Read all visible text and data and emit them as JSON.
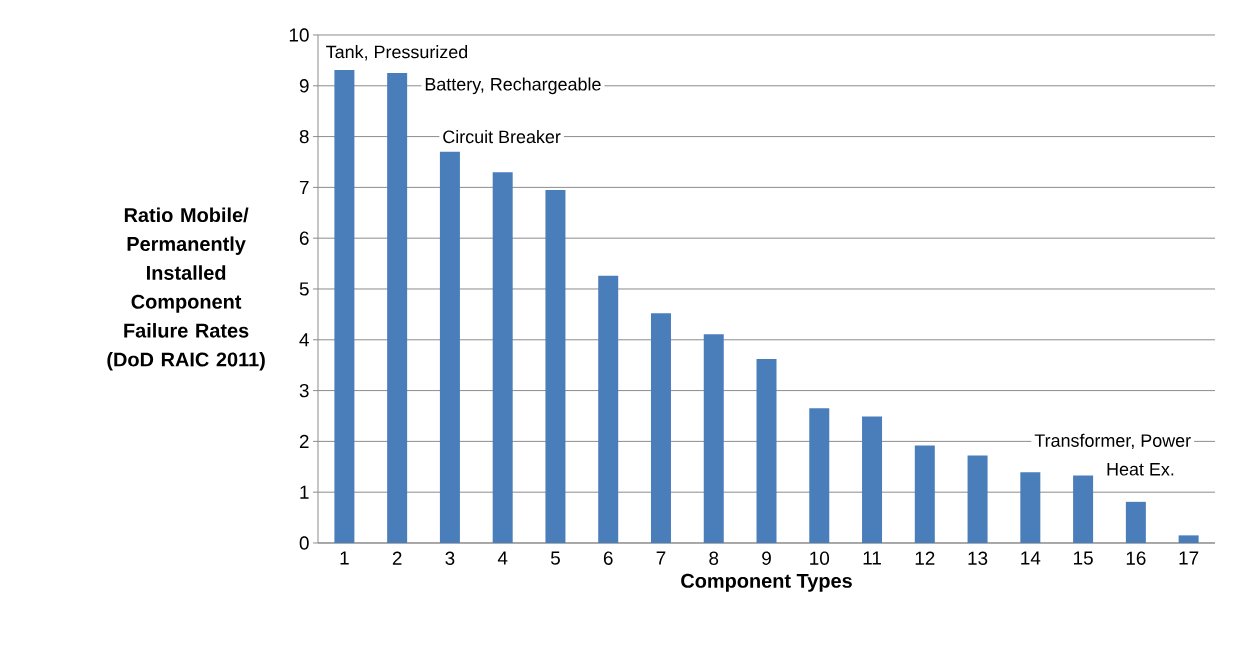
{
  "chart_data": {
    "type": "bar",
    "xlabel": "Component Types",
    "ylabel": "Ratio Mobile/ Permanently Installed Component Failure Rates (DoD RAIC 2011)",
    "categories": [
      "1",
      "2",
      "3",
      "4",
      "5",
      "6",
      "7",
      "8",
      "9",
      "10",
      "11",
      "12",
      "13",
      "14",
      "15",
      "16",
      "17"
    ],
    "values": [
      9.31,
      9.25,
      7.7,
      7.3,
      6.95,
      5.26,
      4.52,
      4.11,
      3.62,
      2.65,
      2.49,
      1.92,
      1.72,
      1.39,
      1.33,
      0.81,
      0.15
    ],
    "color": "#4a7ebb",
    "ylim": [
      0,
      10
    ],
    "yticks": [
      0,
      1,
      2,
      3,
      4,
      5,
      6,
      7,
      8,
      9,
      10
    ],
    "grid": "y",
    "annotations": [
      "Tank, Pressurized",
      "Battery, Rechargeable",
      "Circuit Breaker",
      "Transformer, Power",
      "Heat Ex."
    ]
  }
}
